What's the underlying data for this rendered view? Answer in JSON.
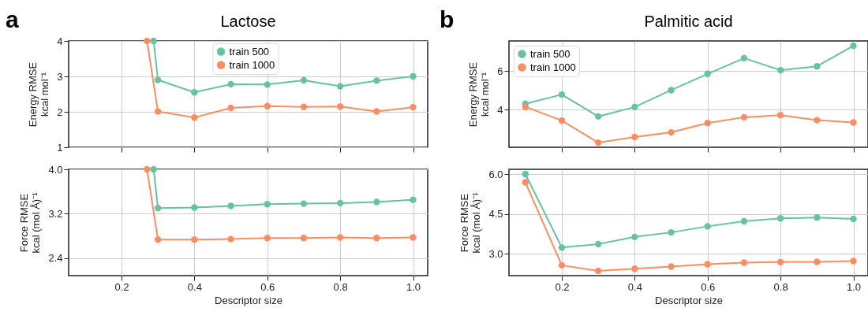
{
  "chart_data": [
    {
      "type": "line",
      "title": "Lactose",
      "ylabel": "Energy RMSE\nkcal mol⁻¹",
      "annotations": [
        "a"
      ],
      "xlim": [
        0.055,
        1.04
      ],
      "xticks": [
        0.2,
        0.4,
        0.6,
        0.8,
        1
      ],
      "ylim": [
        1,
        4
      ],
      "yticks": [
        1,
        2,
        3,
        4
      ],
      "tick_labels": "y",
      "grid": true,
      "legend": "top",
      "marker": "circle",
      "line_style": "solid",
      "series": [
        {
          "name": "train 500",
          "color": "#66c2a5",
          "x": [
            0.288,
            0.3,
            0.4,
            0.5,
            0.6,
            0.7,
            0.8,
            0.9,
            1.0
          ],
          "values": [
            4,
            2.9,
            2.55,
            2.78,
            2.77,
            2.89,
            2.72,
            2.88,
            3.0
          ]
        },
        {
          "name": "train 1000",
          "color": "#fc8d62",
          "x": [
            0.27,
            0.3,
            0.4,
            0.5,
            0.6,
            0.7,
            0.8,
            0.9,
            1.0
          ],
          "values": [
            4,
            2.01,
            1.84,
            2.11,
            2.16,
            2.14,
            2.15,
            2.01,
            2.13
          ]
        }
      ]
    },
    {
      "type": "line",
      "title": "Palmitic acid",
      "ylabel": "Energy RMSE\nkcal mol⁻¹",
      "annotations": [
        "b"
      ],
      "xlim": [
        0.055,
        1.04
      ],
      "xticks": [
        0.2,
        0.4,
        0.6,
        0.8,
        1
      ],
      "ylim": [
        2.06,
        7.55
      ],
      "yticks": [
        4,
        6
      ],
      "tick_labels": "y",
      "grid": true,
      "legend": "top left",
      "marker": "circle",
      "line_style": "solid",
      "series": [
        {
          "name": "train 500",
          "color": "#66c2a5",
          "x": [
            0.1,
            0.2,
            0.3,
            0.4,
            0.5,
            0.6,
            0.7,
            0.8,
            0.9,
            1.0
          ],
          "values": [
            4.31,
            4.78,
            3.65,
            4.14,
            5.01,
            5.85,
            6.66,
            6.04,
            6.24,
            7.3
          ]
        },
        {
          "name": "train 1000",
          "color": "#fc8d62",
          "x": [
            0.1,
            0.2,
            0.3,
            0.4,
            0.5,
            0.6,
            0.7,
            0.8,
            0.9,
            1.0
          ],
          "values": [
            4.15,
            3.44,
            2.3,
            2.59,
            2.83,
            3.31,
            3.61,
            3.72,
            3.46,
            3.34
          ]
        }
      ]
    },
    {
      "type": "line",
      "xlabel": "Descriptor size",
      "ylabel": "Force RMSE\nkcal (mol Å)⁻¹",
      "xlim": [
        0.055,
        1.04
      ],
      "xticks": [
        0.2,
        0.4,
        0.6,
        0.8,
        {
          "value": 1,
          "label": "1.0"
        }
      ],
      "ylim": [
        2.08,
        4
      ],
      "yticks": [
        2.4,
        3.2,
        {
          "value": 4,
          "label": "4.0"
        }
      ],
      "grid": true,
      "marker": "circle",
      "line_style": "solid",
      "series": [
        {
          "color": "#66c2a5",
          "x": [
            0.288,
            0.3,
            0.4,
            0.5,
            0.6,
            0.7,
            0.8,
            0.9,
            1.0
          ],
          "values": [
            4,
            3.3,
            3.31,
            3.34,
            3.37,
            3.38,
            3.39,
            3.41,
            3.45
          ]
        },
        {
          "color": "#fc8d62",
          "x": [
            0.27,
            0.3,
            0.4,
            0.5,
            0.6,
            0.7,
            0.8,
            0.9,
            1.0
          ],
          "values": [
            4,
            2.73,
            2.73,
            2.74,
            2.76,
            2.76,
            2.77,
            2.76,
            2.77
          ]
        }
      ]
    },
    {
      "type": "line",
      "xlabel": "Descriptor size",
      "ylabel": "Force RMSE\nkcal (mol Å)⁻¹",
      "xlim": [
        0.055,
        1.04
      ],
      "xticks": [
        0.2,
        0.4,
        0.6,
        0.8,
        {
          "value": 1,
          "label": "1.0"
        }
      ],
      "ylim": [
        2.17,
        6.18
      ],
      "yticks": [
        {
          "value": 3,
          "label": "3.0"
        },
        4.5,
        {
          "value": 6,
          "label": "6.0"
        }
      ],
      "grid": true,
      "marker": "circle",
      "line_style": "solid",
      "series": [
        {
          "color": "#66c2a5",
          "x": [
            0.1,
            0.2,
            0.3,
            0.4,
            0.5,
            0.6,
            0.7,
            0.8,
            0.9,
            1.0
          ],
          "values": [
            6.0,
            3.23,
            3.36,
            3.63,
            3.8,
            4.03,
            4.22,
            4.33,
            4.36,
            4.31
          ]
        },
        {
          "color": "#fc8d62",
          "x": [
            0.1,
            0.2,
            0.3,
            0.4,
            0.5,
            0.6,
            0.7,
            0.8,
            0.9,
            1.0
          ],
          "values": [
            5.69,
            2.56,
            2.35,
            2.43,
            2.51,
            2.6,
            2.66,
            2.68,
            2.69,
            2.72
          ]
        }
      ]
    }
  ]
}
